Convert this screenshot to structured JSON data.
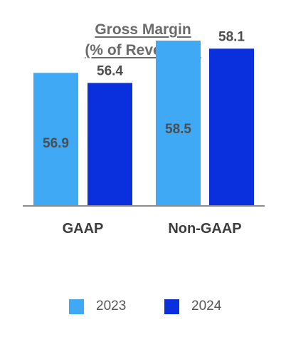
{
  "chart_data": {
    "type": "bar",
    "title_lines": [
      "Gross Margin",
      "(% of Revenues)"
    ],
    "categories": [
      "GAAP",
      "Non-GAAP"
    ],
    "series": [
      {
        "name": "2023",
        "values": [
          56.9,
          58.5
        ],
        "color": "#3fa9f5"
      },
      {
        "name": "2024",
        "values": [
          56.4,
          58.1
        ],
        "color": "#0a2fdc"
      }
    ],
    "xlabel": "",
    "ylabel": "",
    "ylim": [
      50.3,
      59.1
    ],
    "grid": false,
    "legend": "bottom",
    "axis_color": "#8c8c8c",
    "value_label_color": "#4d4d4d"
  }
}
